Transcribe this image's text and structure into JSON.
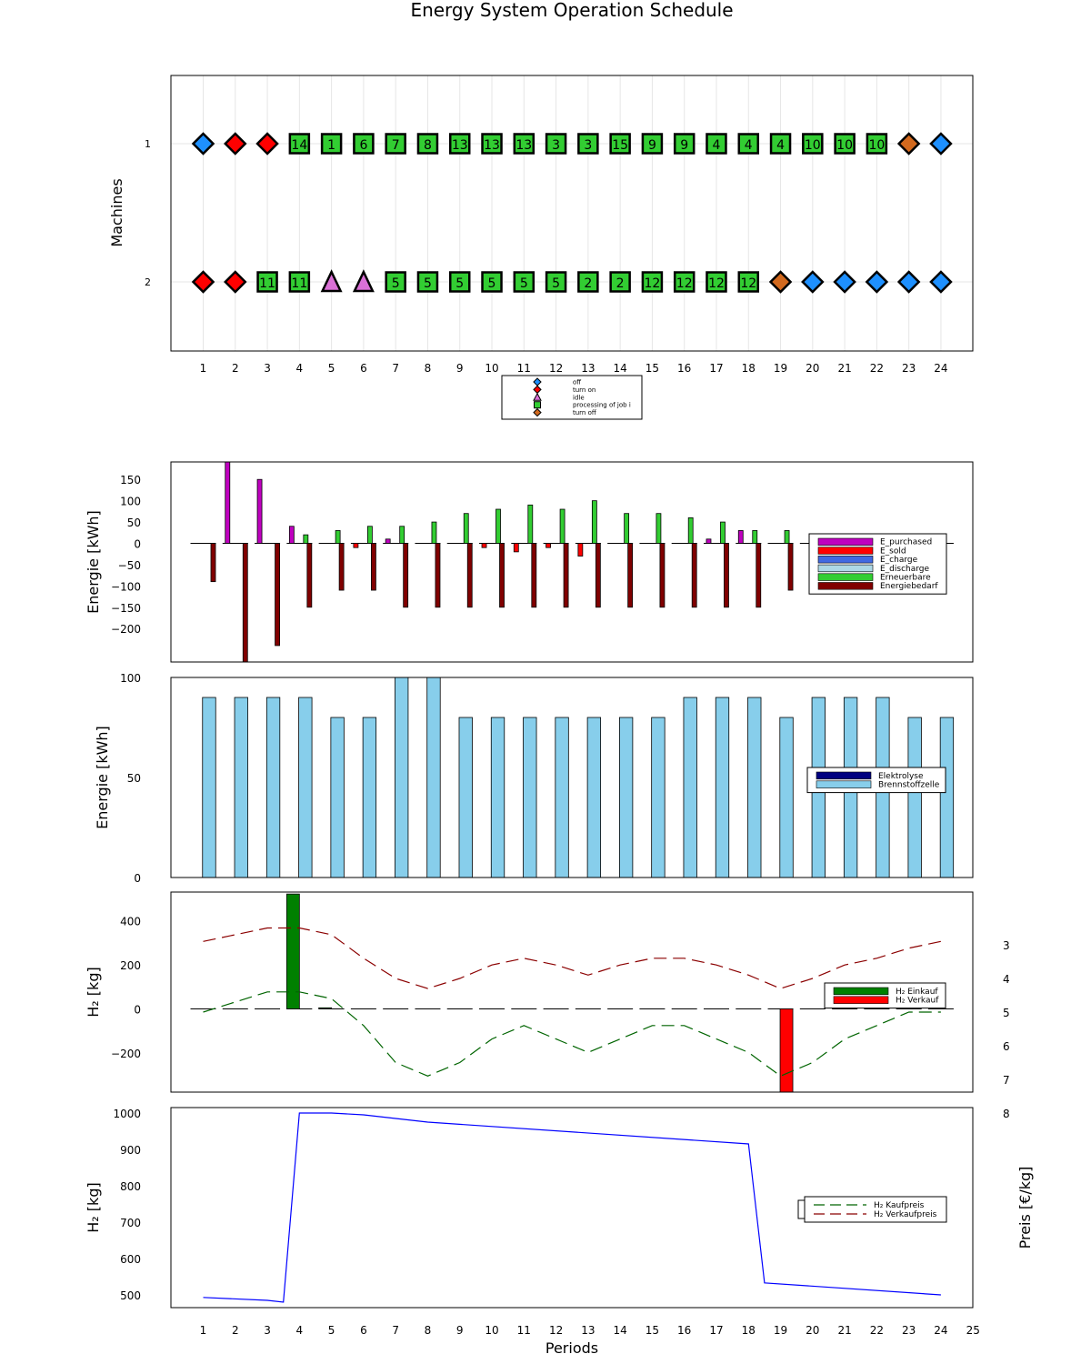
{
  "title": "Energy System Operation Schedule",
  "colors": {
    "off": "#1e90ff",
    "turn_on": "#ff0000",
    "idle": "#da70d6",
    "processing": "#32cd32",
    "turn_off": "#d2691e",
    "e_purchased": "#c000c0",
    "e_sold": "#ff0000",
    "e_charge": "#4169e1",
    "e_discharge": "#add8e6",
    "erneuerbare": "#32cd32",
    "energiebedarf": "#800000",
    "elektrolyse": "#000080",
    "brennstoffzelle": "#87ceeb",
    "h2_einkauf": "#008000",
    "h2_verkauf": "#ff0000",
    "h2_storage_line": "#0000ff",
    "kaufpreis_line": "#006400",
    "verkaufpreis_line": "#8b0000"
  },
  "chart_data": [
    {
      "id": "schedule",
      "type": "scatter",
      "ylabel": "Machines",
      "x_ticks": [
        1,
        2,
        3,
        4,
        5,
        6,
        7,
        8,
        9,
        10,
        11,
        12,
        13,
        14,
        15,
        16,
        17,
        18,
        19,
        20,
        21,
        22,
        23,
        24
      ],
      "y_ticks": [
        "1",
        "2"
      ],
      "legend": {
        "placement": "bottom-center",
        "entries": [
          {
            "key": "off",
            "label": "off",
            "marker": "diamond"
          },
          {
            "key": "turn_on",
            "label": "turn on",
            "marker": "diamond"
          },
          {
            "key": "idle",
            "label": "idle",
            "marker": "triangle"
          },
          {
            "key": "processing",
            "label": "processing of job i",
            "marker": "square"
          },
          {
            "key": "turn_off",
            "label": "turn off",
            "marker": "diamond"
          }
        ]
      },
      "machines": [
        {
          "label": "1",
          "states": [
            "off",
            "turn_on",
            "turn_on",
            "processing",
            "processing",
            "processing",
            "processing",
            "processing",
            "processing",
            "processing",
            "processing",
            "processing",
            "processing",
            "processing",
            "processing",
            "processing",
            "processing",
            "processing",
            "processing",
            "processing",
            "processing",
            "processing",
            "turn_off",
            "off"
          ],
          "jobs": [
            "",
            "",
            "",
            "14",
            "1",
            "6",
            "7",
            "8",
            "13",
            "13",
            "13",
            "3",
            "3",
            "15",
            "9",
            "9",
            "4",
            "4",
            "4",
            "10",
            "10",
            "10",
            "",
            ""
          ]
        },
        {
          "label": "2",
          "states": [
            "turn_on",
            "turn_on",
            "processing",
            "processing",
            "idle",
            "idle",
            "processing",
            "processing",
            "processing",
            "processing",
            "processing",
            "processing",
            "processing",
            "processing",
            "processing",
            "processing",
            "processing",
            "processing",
            "turn_off",
            "off",
            "off",
            "off",
            "off",
            "off"
          ],
          "jobs": [
            "",
            "",
            "11",
            "11",
            "",
            "",
            "5",
            "5",
            "5",
            "5",
            "5",
            "5",
            "2",
            "2",
            "12",
            "12",
            "12",
            "12",
            "",
            "",
            "",
            "",
            "",
            ""
          ]
        }
      ]
    },
    {
      "id": "energy",
      "type": "bar",
      "ylabel": "Energie [kWh]",
      "ylim": [
        -280,
        190
      ],
      "y_ticks": [
        150,
        100,
        50,
        0,
        -50,
        -100,
        -150,
        -200
      ],
      "legend": {
        "placement": "right"
      },
      "series": [
        {
          "key": "e_purchased",
          "name": "E_purchased",
          "values": [
            0,
            195,
            150,
            40,
            0,
            0,
            10,
            0,
            0,
            0,
            0,
            0,
            0,
            0,
            0,
            0,
            10,
            30,
            0,
            0,
            0,
            0,
            0,
            0
          ]
        },
        {
          "key": "e_sold",
          "name": "E_sold",
          "values": [
            0,
            0,
            0,
            0,
            0,
            -10,
            0,
            0,
            0,
            -10,
            -20,
            -10,
            -30,
            0,
            0,
            0,
            0,
            0,
            0,
            0,
            0,
            0,
            0,
            0
          ]
        },
        {
          "key": "e_charge",
          "name": "E_charge",
          "values": [
            0,
            0,
            0,
            0,
            0,
            0,
            0,
            0,
            0,
            0,
            0,
            0,
            0,
            0,
            0,
            0,
            0,
            0,
            0,
            0,
            0,
            0,
            0,
            0
          ]
        },
        {
          "key": "e_discharge",
          "name": "E_discharge",
          "values": [
            0,
            0,
            0,
            0,
            0,
            0,
            0,
            0,
            0,
            0,
            0,
            0,
            0,
            0,
            0,
            0,
            0,
            0,
            0,
            0,
            0,
            0,
            0,
            0
          ]
        },
        {
          "key": "erneuerbare",
          "name": "Erneuerbare",
          "values": [
            0,
            0,
            0,
            20,
            30,
            40,
            40,
            50,
            70,
            80,
            90,
            80,
            100,
            70,
            70,
            60,
            50,
            30,
            30,
            0,
            0,
            0,
            0,
            0
          ]
        },
        {
          "key": "energiebedarf",
          "name": "Energiebedarf",
          "values": [
            -90,
            -280,
            -240,
            -150,
            -110,
            -110,
            -150,
            -150,
            -150,
            -150,
            -150,
            -150,
            -150,
            -150,
            -150,
            -150,
            -150,
            -150,
            -110,
            0,
            0,
            0,
            0,
            0
          ]
        }
      ]
    },
    {
      "id": "h2_conversion",
      "type": "bar",
      "ylabel": "Energie [kWh]",
      "ylim": [
        0,
        100
      ],
      "y_ticks": [
        100,
        50,
        0
      ],
      "legend": {
        "placement": "right"
      },
      "series": [
        {
          "key": "elektrolyse",
          "name": "Elektrolyse",
          "values": [
            0,
            0,
            0,
            0,
            0,
            0,
            0,
            0,
            0,
            0,
            0,
            0,
            0,
            0,
            0,
            0,
            0,
            0,
            0,
            0,
            0,
            0,
            0,
            0
          ]
        },
        {
          "key": "brennstoffzelle",
          "name": "Brennstoffzelle",
          "values": [
            90,
            90,
            90,
            90,
            80,
            80,
            100,
            100,
            80,
            80,
            80,
            80,
            80,
            80,
            80,
            90,
            90,
            90,
            80,
            90,
            90,
            90,
            80,
            80
          ]
        }
      ]
    },
    {
      "id": "h2_trade",
      "type": "bar",
      "ylabel": "H₂ [kg]",
      "ylim": [
        -380,
        520
      ],
      "y_ticks": [
        400,
        200,
        0,
        -200
      ],
      "legend": {
        "placement": "right"
      },
      "series": [
        {
          "key": "h2_einkauf",
          "name": "H₂ Einkauf",
          "values": [
            0,
            0,
            0,
            520,
            5,
            0,
            0,
            0,
            0,
            0,
            0,
            0,
            0,
            0,
            0,
            0,
            0,
            0,
            0,
            0,
            0,
            0,
            0,
            0
          ]
        },
        {
          "key": "h2_verkauf",
          "name": "H₂ Verkauf",
          "values": [
            0,
            0,
            0,
            0,
            0,
            0,
            0,
            0,
            0,
            0,
            0,
            0,
            0,
            0,
            0,
            0,
            0,
            0,
            -380,
            0,
            0,
            0,
            0,
            0
          ]
        }
      ]
    },
    {
      "id": "h2_storage_prices",
      "type": "line",
      "xlabel": "Periods",
      "ylabel": "H₂ [kg]",
      "ylabel_right": "Preis [€/kg]",
      "x_ticks": [
        1,
        2,
        3,
        4,
        5,
        6,
        7,
        8,
        9,
        10,
        11,
        12,
        13,
        14,
        15,
        16,
        17,
        18,
        19,
        20,
        21,
        22,
        23,
        24,
        25
      ],
      "ylim": [
        465,
        1020
      ],
      "y_ticks": [
        1000,
        900,
        800,
        700,
        600,
        500
      ],
      "ylim_right": [
        2.3,
        8.25
      ],
      "y_ticks_right": [
        8,
        7,
        6,
        5,
        4,
        3
      ],
      "legend": {
        "placement": "right"
      },
      "storage": {
        "key": "h2_storage_line",
        "x": [
          1.0,
          3.0,
          3.5,
          4.0,
          5.0,
          6.0,
          8.0,
          18.0,
          18.5,
          24.0
        ],
        "values": [
          493,
          485,
          480,
          1000,
          1000,
          995,
          975,
          915,
          533,
          500
        ]
      },
      "series": [
        {
          "key": "kaufpreis_line",
          "name": "H₂ Kaufpreis",
          "axis": "right",
          "x": [
            1,
            3,
            4,
            5,
            6,
            7,
            8,
            9,
            10,
            11,
            12,
            13,
            14,
            15,
            16,
            17,
            18,
            19,
            20,
            21,
            22,
            23,
            24
          ],
          "values": [
            5.0,
            4.4,
            4.4,
            4.6,
            5.4,
            6.5,
            6.9,
            6.5,
            5.8,
            5.4,
            5.8,
            6.2,
            5.8,
            5.4,
            5.4,
            5.8,
            6.2,
            6.9,
            6.5,
            5.8,
            5.4,
            5.0,
            5.0
          ]
        },
        {
          "key": "verkaufpreis_line",
          "name": "H₂ Verkaufpreis",
          "axis": "right",
          "x": [
            1,
            3,
            4,
            5,
            6,
            7,
            8,
            9,
            10,
            11,
            12,
            13,
            14,
            15,
            16,
            17,
            18,
            19,
            20,
            21,
            22,
            23,
            24
          ],
          "values": [
            2.9,
            2.5,
            2.5,
            2.7,
            3.4,
            4.0,
            4.3,
            4.0,
            3.6,
            3.4,
            3.6,
            3.9,
            3.6,
            3.4,
            3.4,
            3.6,
            3.9,
            4.3,
            4.0,
            3.6,
            3.4,
            3.1,
            2.9
          ]
        }
      ]
    }
  ]
}
